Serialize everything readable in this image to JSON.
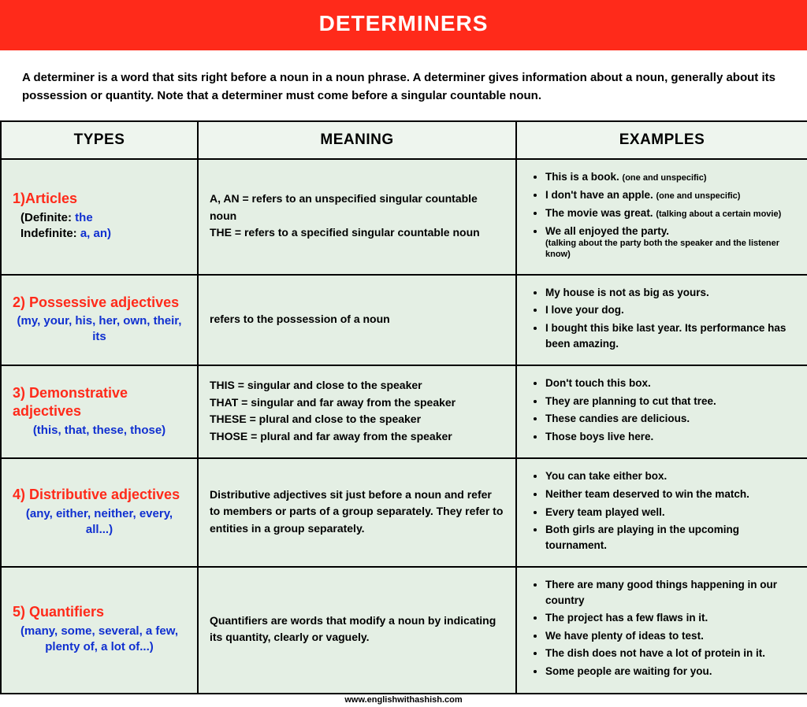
{
  "colors": {
    "banner_bg": "#ff2a1a",
    "banner_text": "#ffffff",
    "table_bg": "#e4efe4",
    "header_bg": "#eef5ee",
    "border": "#000000",
    "accent_red": "#ff2a1a",
    "accent_blue": "#1030d0",
    "text": "#000000"
  },
  "banner": {
    "title": "DETERMINERS"
  },
  "intro": "A determiner is a word that sits right before a noun in a noun phrase. A determiner gives information about a noun, generally about its possession or quantity. Note that a determiner must come before a singular countable noun.",
  "headers": {
    "types": "TYPES",
    "meaning": "MEANING",
    "examples": "EXAMPLES"
  },
  "rows": [
    {
      "title": "1)Articles",
      "sub_html": "<span class='blk'>(Definite: </span>the<br><span class='blk'>Indefinite: </span>a, an)",
      "sub_align": "left",
      "meaning_html": "<b>A, AN =</b> refers to an unspecified singular countable noun<br><b>THE =</b> refers to a specified singular countable noun",
      "examples": [
        "This is <b>a book.</b> <span class='note'>(one and unspecific)</span>",
        "I don't have <b>an apple.</b> <span class='note'>(one and unspecific)</span>",
        "<b>The movie</b> was great. <span class='note'>(talking about a certain movie)</span>",
        "We all enjoyed <b>the party.</b><span class='note-block'>(talking about the party both the speaker and the listener know)</span>"
      ]
    },
    {
      "title": "2) Possessive adjectives",
      "sub_html": "(my, your, his, her, own, their, its",
      "meaning_html": "refers to the possession of a noun",
      "examples": [
        "<b>My house</b> is not as big as yours.",
        "I love <b>your dog.</b>",
        "I bought this bike last year. <b>Its performance</b> has been amazing."
      ]
    },
    {
      "title": "3) Demonstrative adjectives",
      "sub_html": "(this, that, these, those)",
      "meaning_html": "<b>THIS</b> = singular and close to the speaker<br><b>THAT</b> = singular and far away from the speaker<br><b>THESE</b> = plural and close to the speaker<br><b>THOSE</b> = plural and far away from the speaker",
      "examples": [
        "Don't touch <b>this box.</b>",
        "They are planning to cut <b>that tree.</b>",
        "<b>These candies</b> are delicious.",
        "<b>Those boys</b> live here."
      ]
    },
    {
      "title": "4) Distributive adjectives",
      "sub_html": "(any, either, neither, every, all...)",
      "meaning_html": "Distributive adjectives sit just before a noun and refer to members or parts of a group separately. They refer to entities in a group separately.",
      "examples": [
        "You can take <b>either box.</b>",
        "<b>Neither team</b> deserved to win the match.",
        "<b>Every team</b> played well.",
        "<b>Both girls</b> are playing in the upcoming tournament."
      ]
    },
    {
      "title": "5) Quantifiers",
      "sub_html": "(many, some, several, a few, plenty of, a lot of...)",
      "meaning_html": "Quantifiers are words that modify a noun by indicating its quantity, clearly or vaguely.",
      "examples": [
        "There are <b>many good things</b> happening in our country",
        "The project has <b>a few flaws</b> in it.",
        "We have <b>plenty of ideas</b> to test.",
        "The dish does not have <b>a lot of protein</b> in it.",
        "<b>Some people</b> are waiting for you."
      ]
    }
  ],
  "footer": "www.englishwithashish.com"
}
